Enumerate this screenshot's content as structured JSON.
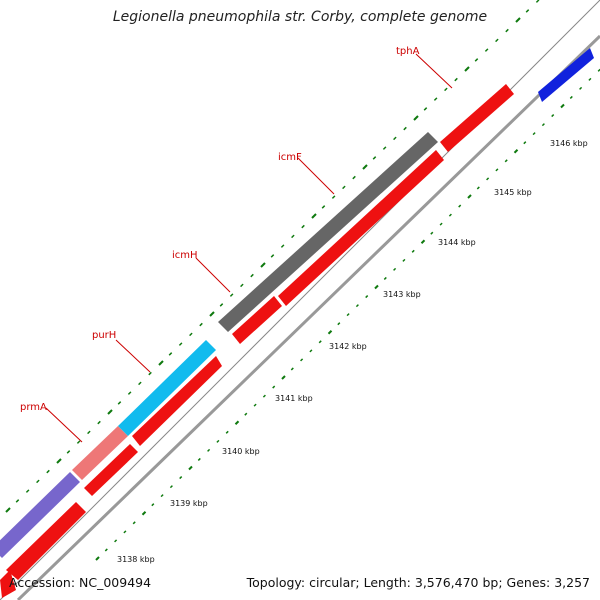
{
  "title": "Legionella pneumophila str. Corby, complete genome",
  "footer": {
    "accession": "Accession: NC_009494",
    "summary": "Topology: circular; Length: 3,576,470 bp; Genes: 3,257"
  },
  "colors": {
    "cds": "#ee1111",
    "backbone": "#999999",
    "tick": "#0f7a0f",
    "label": "#cc0000",
    "gray_gene": "#666666",
    "cyan_gene": "#11bbee",
    "pink_gene": "#ee7777",
    "purple_gene": "#7766cc",
    "blue_gene": "#1122dd"
  },
  "tick_labels": [
    "3138 kbp",
    "3139 kbp",
    "3140 kbp",
    "3141 kbp",
    "3142 kbp",
    "3143 kbp",
    "3144 kbp",
    "3145 kbp",
    "3146 kbp"
  ],
  "gene_labels": [
    "prmA",
    "purH",
    "icmH",
    "icmF",
    "tphA"
  ]
}
